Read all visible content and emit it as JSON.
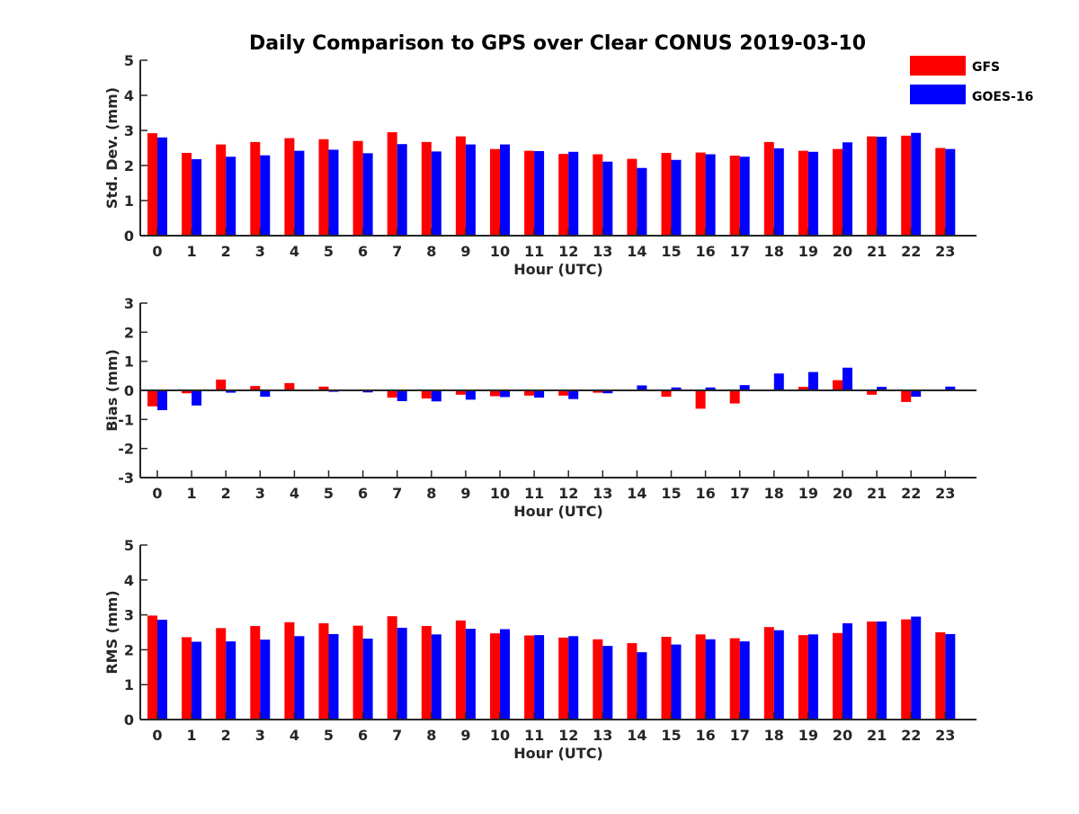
{
  "colors": {
    "gfs": "#ff0000",
    "goes": "#0000ff",
    "axis": "#262626"
  },
  "chart_data": [
    {
      "type": "bar",
      "title": "Daily Comparison to GPS over Clear CONUS 2019-03-10",
      "xlabel": "Hour (UTC)",
      "ylabel": "Std. Dev. (mm)",
      "ylim": [
        0,
        5
      ],
      "yticks": [
        "0",
        "1",
        "2",
        "3",
        "4",
        "5"
      ],
      "categories": [
        "0",
        "1",
        "2",
        "3",
        "4",
        "5",
        "6",
        "7",
        "8",
        "9",
        "10",
        "11",
        "12",
        "13",
        "14",
        "15",
        "16",
        "17",
        "18",
        "19",
        "20",
        "21",
        "22",
        "23"
      ],
      "series": [
        {
          "name": "GFS",
          "values": [
            2.92,
            2.36,
            2.6,
            2.67,
            2.78,
            2.75,
            2.7,
            2.95,
            2.67,
            2.83,
            2.47,
            2.42,
            2.33,
            2.32,
            2.19,
            2.36,
            2.37,
            2.28,
            2.67,
            2.42,
            2.47,
            2.83,
            2.85,
            2.5
          ]
        },
        {
          "name": "GOES-16",
          "values": [
            2.8,
            2.18,
            2.25,
            2.29,
            2.42,
            2.45,
            2.35,
            2.61,
            2.4,
            2.6,
            2.6,
            2.41,
            2.39,
            2.11,
            1.93,
            2.16,
            2.32,
            2.25,
            2.49,
            2.39,
            2.66,
            2.82,
            2.93,
            2.47
          ]
        }
      ],
      "legend": {
        "placement": "top-right",
        "entries": [
          "GFS",
          "GOES-16"
        ]
      }
    },
    {
      "type": "bar",
      "xlabel": "Hour (UTC)",
      "ylabel": "Bias (mm)",
      "ylim": [
        -3,
        3
      ],
      "yticks": [
        "-3",
        "-2",
        "-1",
        "0",
        "1",
        "2",
        "3"
      ],
      "categories": [
        "0",
        "1",
        "2",
        "3",
        "4",
        "5",
        "6",
        "7",
        "8",
        "9",
        "10",
        "11",
        "12",
        "13",
        "14",
        "15",
        "16",
        "17",
        "18",
        "19",
        "20",
        "21",
        "22",
        "23"
      ],
      "series": [
        {
          "name": "GFS",
          "values": [
            -0.55,
            -0.1,
            0.37,
            0.15,
            0.25,
            0.13,
            0.03,
            -0.25,
            -0.28,
            -0.15,
            -0.2,
            -0.18,
            -0.18,
            -0.08,
            -0.03,
            -0.22,
            -0.63,
            -0.45,
            0.02,
            0.12,
            0.35,
            -0.15,
            -0.4,
            0.02
          ]
        },
        {
          "name": "GOES-16",
          "values": [
            -0.68,
            -0.52,
            -0.08,
            -0.22,
            0.0,
            -0.05,
            -0.07,
            -0.37,
            -0.38,
            -0.32,
            -0.23,
            -0.25,
            -0.3,
            -0.1,
            0.17,
            0.1,
            0.1,
            0.18,
            0.58,
            0.63,
            0.78,
            0.12,
            -0.22,
            0.13
          ]
        }
      ]
    },
    {
      "type": "bar",
      "xlabel": "Hour (UTC)",
      "ylabel": "RMS (mm)",
      "ylim": [
        0,
        5
      ],
      "yticks": [
        "0",
        "1",
        "2",
        "3",
        "4",
        "5"
      ],
      "categories": [
        "0",
        "1",
        "2",
        "3",
        "4",
        "5",
        "6",
        "7",
        "8",
        "9",
        "10",
        "11",
        "12",
        "13",
        "14",
        "15",
        "16",
        "17",
        "18",
        "19",
        "20",
        "21",
        "22",
        "23"
      ],
      "series": [
        {
          "name": "GFS",
          "values": [
            2.98,
            2.36,
            2.62,
            2.68,
            2.79,
            2.76,
            2.69,
            2.96,
            2.68,
            2.84,
            2.47,
            2.41,
            2.35,
            2.3,
            2.19,
            2.37,
            2.44,
            2.33,
            2.65,
            2.42,
            2.48,
            2.81,
            2.87,
            2.5
          ]
        },
        {
          "name": "GOES-16",
          "values": [
            2.86,
            2.23,
            2.24,
            2.29,
            2.39,
            2.45,
            2.32,
            2.63,
            2.44,
            2.6,
            2.59,
            2.42,
            2.39,
            2.11,
            1.93,
            2.15,
            2.3,
            2.24,
            2.56,
            2.44,
            2.76,
            2.81,
            2.95,
            2.45
          ]
        }
      ]
    }
  ]
}
